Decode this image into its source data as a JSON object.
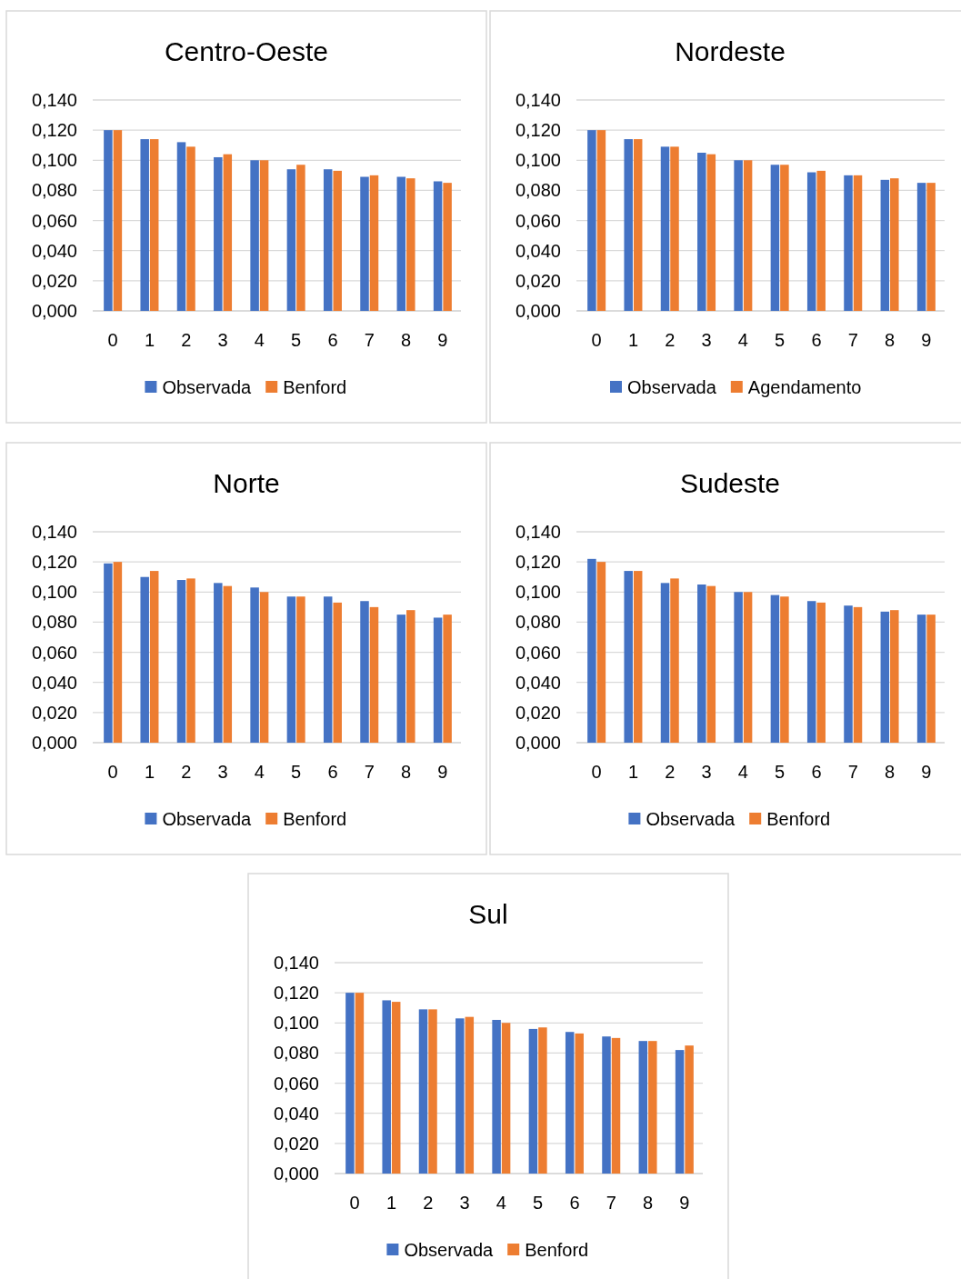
{
  "chart_data": [
    {
      "type": "bar",
      "title": "Centro-Oeste",
      "categories": [
        "0",
        "1",
        "2",
        "3",
        "4",
        "5",
        "6",
        "7",
        "8",
        "9"
      ],
      "series": [
        {
          "name": "Observada",
          "color": "#4472c4",
          "values": [
            0.12,
            0.114,
            0.112,
            0.102,
            0.1,
            0.094,
            0.094,
            0.089,
            0.089,
            0.086
          ]
        },
        {
          "name": "Benford",
          "color": "#ed7d31",
          "values": [
            0.12,
            0.114,
            0.109,
            0.104,
            0.1,
            0.097,
            0.093,
            0.09,
            0.088,
            0.085
          ]
        }
      ],
      "ylim": [
        0,
        0.14
      ],
      "yticks": [
        {
          "value": 0,
          "label": "0,000"
        },
        {
          "value": 0.02,
          "label": "0,020"
        },
        {
          "value": 0.04,
          "label": "0,040"
        },
        {
          "value": 0.06,
          "label": "0,060"
        },
        {
          "value": 0.08,
          "label": "0,080"
        },
        {
          "value": 0.1,
          "label": "0,100"
        },
        {
          "value": 0.12,
          "label": "0,120"
        },
        {
          "value": 0.14,
          "label": "0,140"
        }
      ],
      "grid": "y",
      "legend": "bottom"
    },
    {
      "type": "bar",
      "title": "Nordeste",
      "categories": [
        "0",
        "1",
        "2",
        "3",
        "4",
        "5",
        "6",
        "7",
        "8",
        "9"
      ],
      "series": [
        {
          "name": "Observada",
          "color": "#4472c4",
          "values": [
            0.12,
            0.114,
            0.109,
            0.105,
            0.1,
            0.097,
            0.092,
            0.09,
            0.087,
            0.085
          ]
        },
        {
          "name": "Agendamento",
          "color": "#ed7d31",
          "values": [
            0.12,
            0.114,
            0.109,
            0.104,
            0.1,
            0.097,
            0.093,
            0.09,
            0.088,
            0.085
          ]
        }
      ],
      "ylim": [
        0,
        0.14
      ],
      "yticks": [
        {
          "value": 0,
          "label": "0,000"
        },
        {
          "value": 0.02,
          "label": "0,020"
        },
        {
          "value": 0.04,
          "label": "0,040"
        },
        {
          "value": 0.06,
          "label": "0,060"
        },
        {
          "value": 0.08,
          "label": "0,080"
        },
        {
          "value": 0.1,
          "label": "0,100"
        },
        {
          "value": 0.12,
          "label": "0,120"
        },
        {
          "value": 0.14,
          "label": "0,140"
        }
      ],
      "grid": "y",
      "legend": "bottom"
    },
    {
      "type": "bar",
      "title": "Norte",
      "categories": [
        "0",
        "1",
        "2",
        "3",
        "4",
        "5",
        "6",
        "7",
        "8",
        "9"
      ],
      "series": [
        {
          "name": "Observada",
          "color": "#4472c4",
          "values": [
            0.119,
            0.11,
            0.108,
            0.106,
            0.103,
            0.097,
            0.097,
            0.094,
            0.085,
            0.083
          ]
        },
        {
          "name": "Benford",
          "color": "#ed7d31",
          "values": [
            0.12,
            0.114,
            0.109,
            0.104,
            0.1,
            0.097,
            0.093,
            0.09,
            0.088,
            0.085
          ]
        }
      ],
      "ylim": [
        0,
        0.14
      ],
      "yticks": [
        {
          "value": 0,
          "label": "0,000"
        },
        {
          "value": 0.02,
          "label": "0,020"
        },
        {
          "value": 0.04,
          "label": "0,040"
        },
        {
          "value": 0.06,
          "label": "0,060"
        },
        {
          "value": 0.08,
          "label": "0,080"
        },
        {
          "value": 0.1,
          "label": "0,100"
        },
        {
          "value": 0.12,
          "label": "0,120"
        },
        {
          "value": 0.14,
          "label": "0,140"
        }
      ],
      "grid": "y",
      "legend": "bottom"
    },
    {
      "type": "bar",
      "title": "Sudeste",
      "categories": [
        "0",
        "1",
        "2",
        "3",
        "4",
        "5",
        "6",
        "7",
        "8",
        "9"
      ],
      "series": [
        {
          "name": "Observada",
          "color": "#4472c4",
          "values": [
            0.122,
            0.114,
            0.106,
            0.105,
            0.1,
            0.098,
            0.094,
            0.091,
            0.087,
            0.085
          ]
        },
        {
          "name": "Benford",
          "color": "#ed7d31",
          "values": [
            0.12,
            0.114,
            0.109,
            0.104,
            0.1,
            0.097,
            0.093,
            0.09,
            0.088,
            0.085
          ]
        }
      ],
      "ylim": [
        0,
        0.14
      ],
      "yticks": [
        {
          "value": 0,
          "label": "0,000"
        },
        {
          "value": 0.02,
          "label": "0,020"
        },
        {
          "value": 0.04,
          "label": "0,040"
        },
        {
          "value": 0.06,
          "label": "0,060"
        },
        {
          "value": 0.08,
          "label": "0,080"
        },
        {
          "value": 0.1,
          "label": "0,100"
        },
        {
          "value": 0.12,
          "label": "0,120"
        },
        {
          "value": 0.14,
          "label": "0,140"
        }
      ],
      "grid": "y",
      "legend": "bottom"
    },
    {
      "type": "bar",
      "title": "Sul",
      "categories": [
        "0",
        "1",
        "2",
        "3",
        "4",
        "5",
        "6",
        "7",
        "8",
        "9"
      ],
      "series": [
        {
          "name": "Observada",
          "color": "#4472c4",
          "values": [
            0.12,
            0.115,
            0.109,
            0.103,
            0.102,
            0.096,
            0.094,
            0.091,
            0.088,
            0.082
          ]
        },
        {
          "name": "Benford",
          "color": "#ed7d31",
          "values": [
            0.12,
            0.114,
            0.109,
            0.104,
            0.1,
            0.097,
            0.093,
            0.09,
            0.088,
            0.085
          ]
        }
      ],
      "ylim": [
        0,
        0.14
      ],
      "yticks": [
        {
          "value": 0,
          "label": "0,000"
        },
        {
          "value": 0.02,
          "label": "0,020"
        },
        {
          "value": 0.04,
          "label": "0,040"
        },
        {
          "value": 0.06,
          "label": "0,060"
        },
        {
          "value": 0.08,
          "label": "0,080"
        },
        {
          "value": 0.1,
          "label": "0,100"
        },
        {
          "value": 0.12,
          "label": "0,120"
        },
        {
          "value": 0.14,
          "label": "0,140"
        }
      ],
      "grid": "y",
      "legend": "bottom"
    }
  ]
}
